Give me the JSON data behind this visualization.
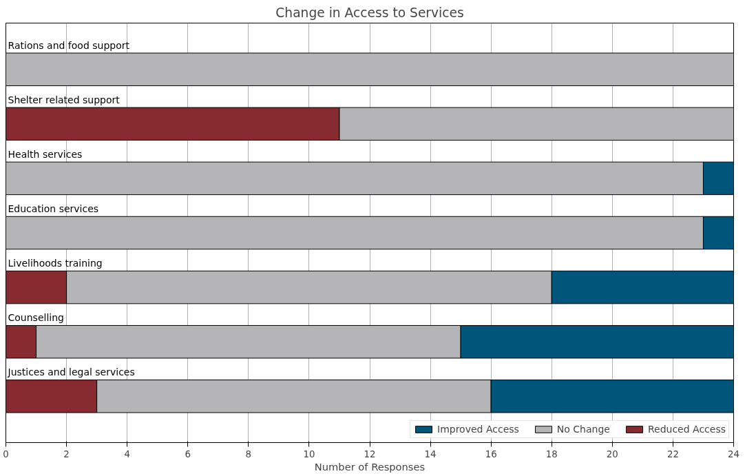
{
  "chart_data": {
    "type": "bar",
    "orientation": "horizontal",
    "stacked": true,
    "title": "Change in Access to Services",
    "xlabel": "Number of Responses",
    "categories": [
      "Rations and food support",
      "Shelter related support",
      "Health services",
      "Education services",
      "Livelihoods training",
      "Counselling",
      "Justices and legal services"
    ],
    "series": [
      {
        "name": "Reduced Access",
        "color": "#872b31",
        "values": [
          null,
          11,
          null,
          null,
          2,
          1,
          3
        ]
      },
      {
        "name": "No Change",
        "color": "#b5b5b7",
        "values": [
          24,
          13,
          23,
          23,
          16,
          14,
          13
        ]
      },
      {
        "name": "Improved Access",
        "color": "#00567a",
        "values": [
          null,
          null,
          1,
          1,
          6,
          9,
          8
        ]
      }
    ],
    "xlim": [
      0,
      24
    ],
    "xticks": [
      0,
      2,
      4,
      6,
      8,
      10,
      12,
      14,
      16,
      18,
      20,
      22,
      24
    ],
    "grid": "x",
    "legend": "bottom right"
  }
}
